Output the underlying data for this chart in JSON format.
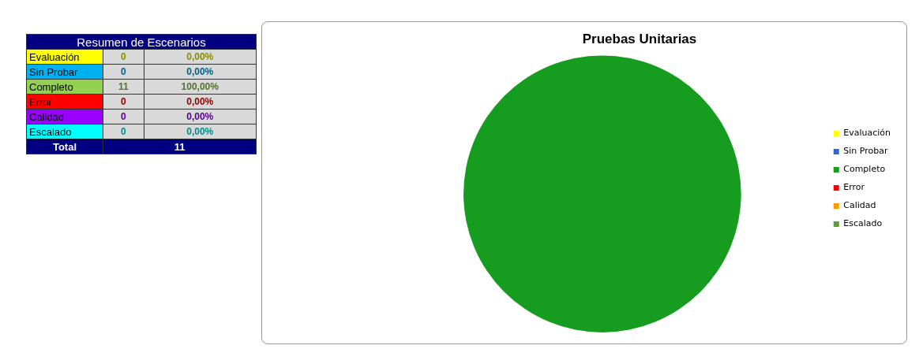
{
  "chart_data": [
    {
      "type": "other",
      "title": "Resumen de Escenarios",
      "categories": [
        "Evaluación",
        "Sin Probar",
        "Completo",
        "Error",
        "Calidad",
        "Escalado"
      ],
      "colors": [
        "#ffff00",
        "#00b0f0",
        "#92d050",
        "#ff0000",
        "#9900ff",
        "#00ffff"
      ],
      "annotations": [
        "0",
        "0,00%",
        "0",
        "0,00%",
        "11",
        "100,00%",
        "0",
        "0,00%",
        "0",
        "0,00%",
        "0",
        "0,00%",
        "Total",
        "11"
      ]
    },
    {
      "type": "pie",
      "title": "Pruebas Unitarias",
      "categories": [
        "Evaluación",
        "Sin Probar",
        "Completo",
        "Error",
        "Calidad",
        "Escalado"
      ],
      "values": [
        0,
        0,
        100,
        0,
        0,
        0
      ],
      "colors": [
        "#ffff00",
        "#3366cc",
        "#169c1e",
        "#ff0000",
        "#ff9900",
        "#5b9b3a"
      ],
      "legend": "right"
    }
  ]
}
